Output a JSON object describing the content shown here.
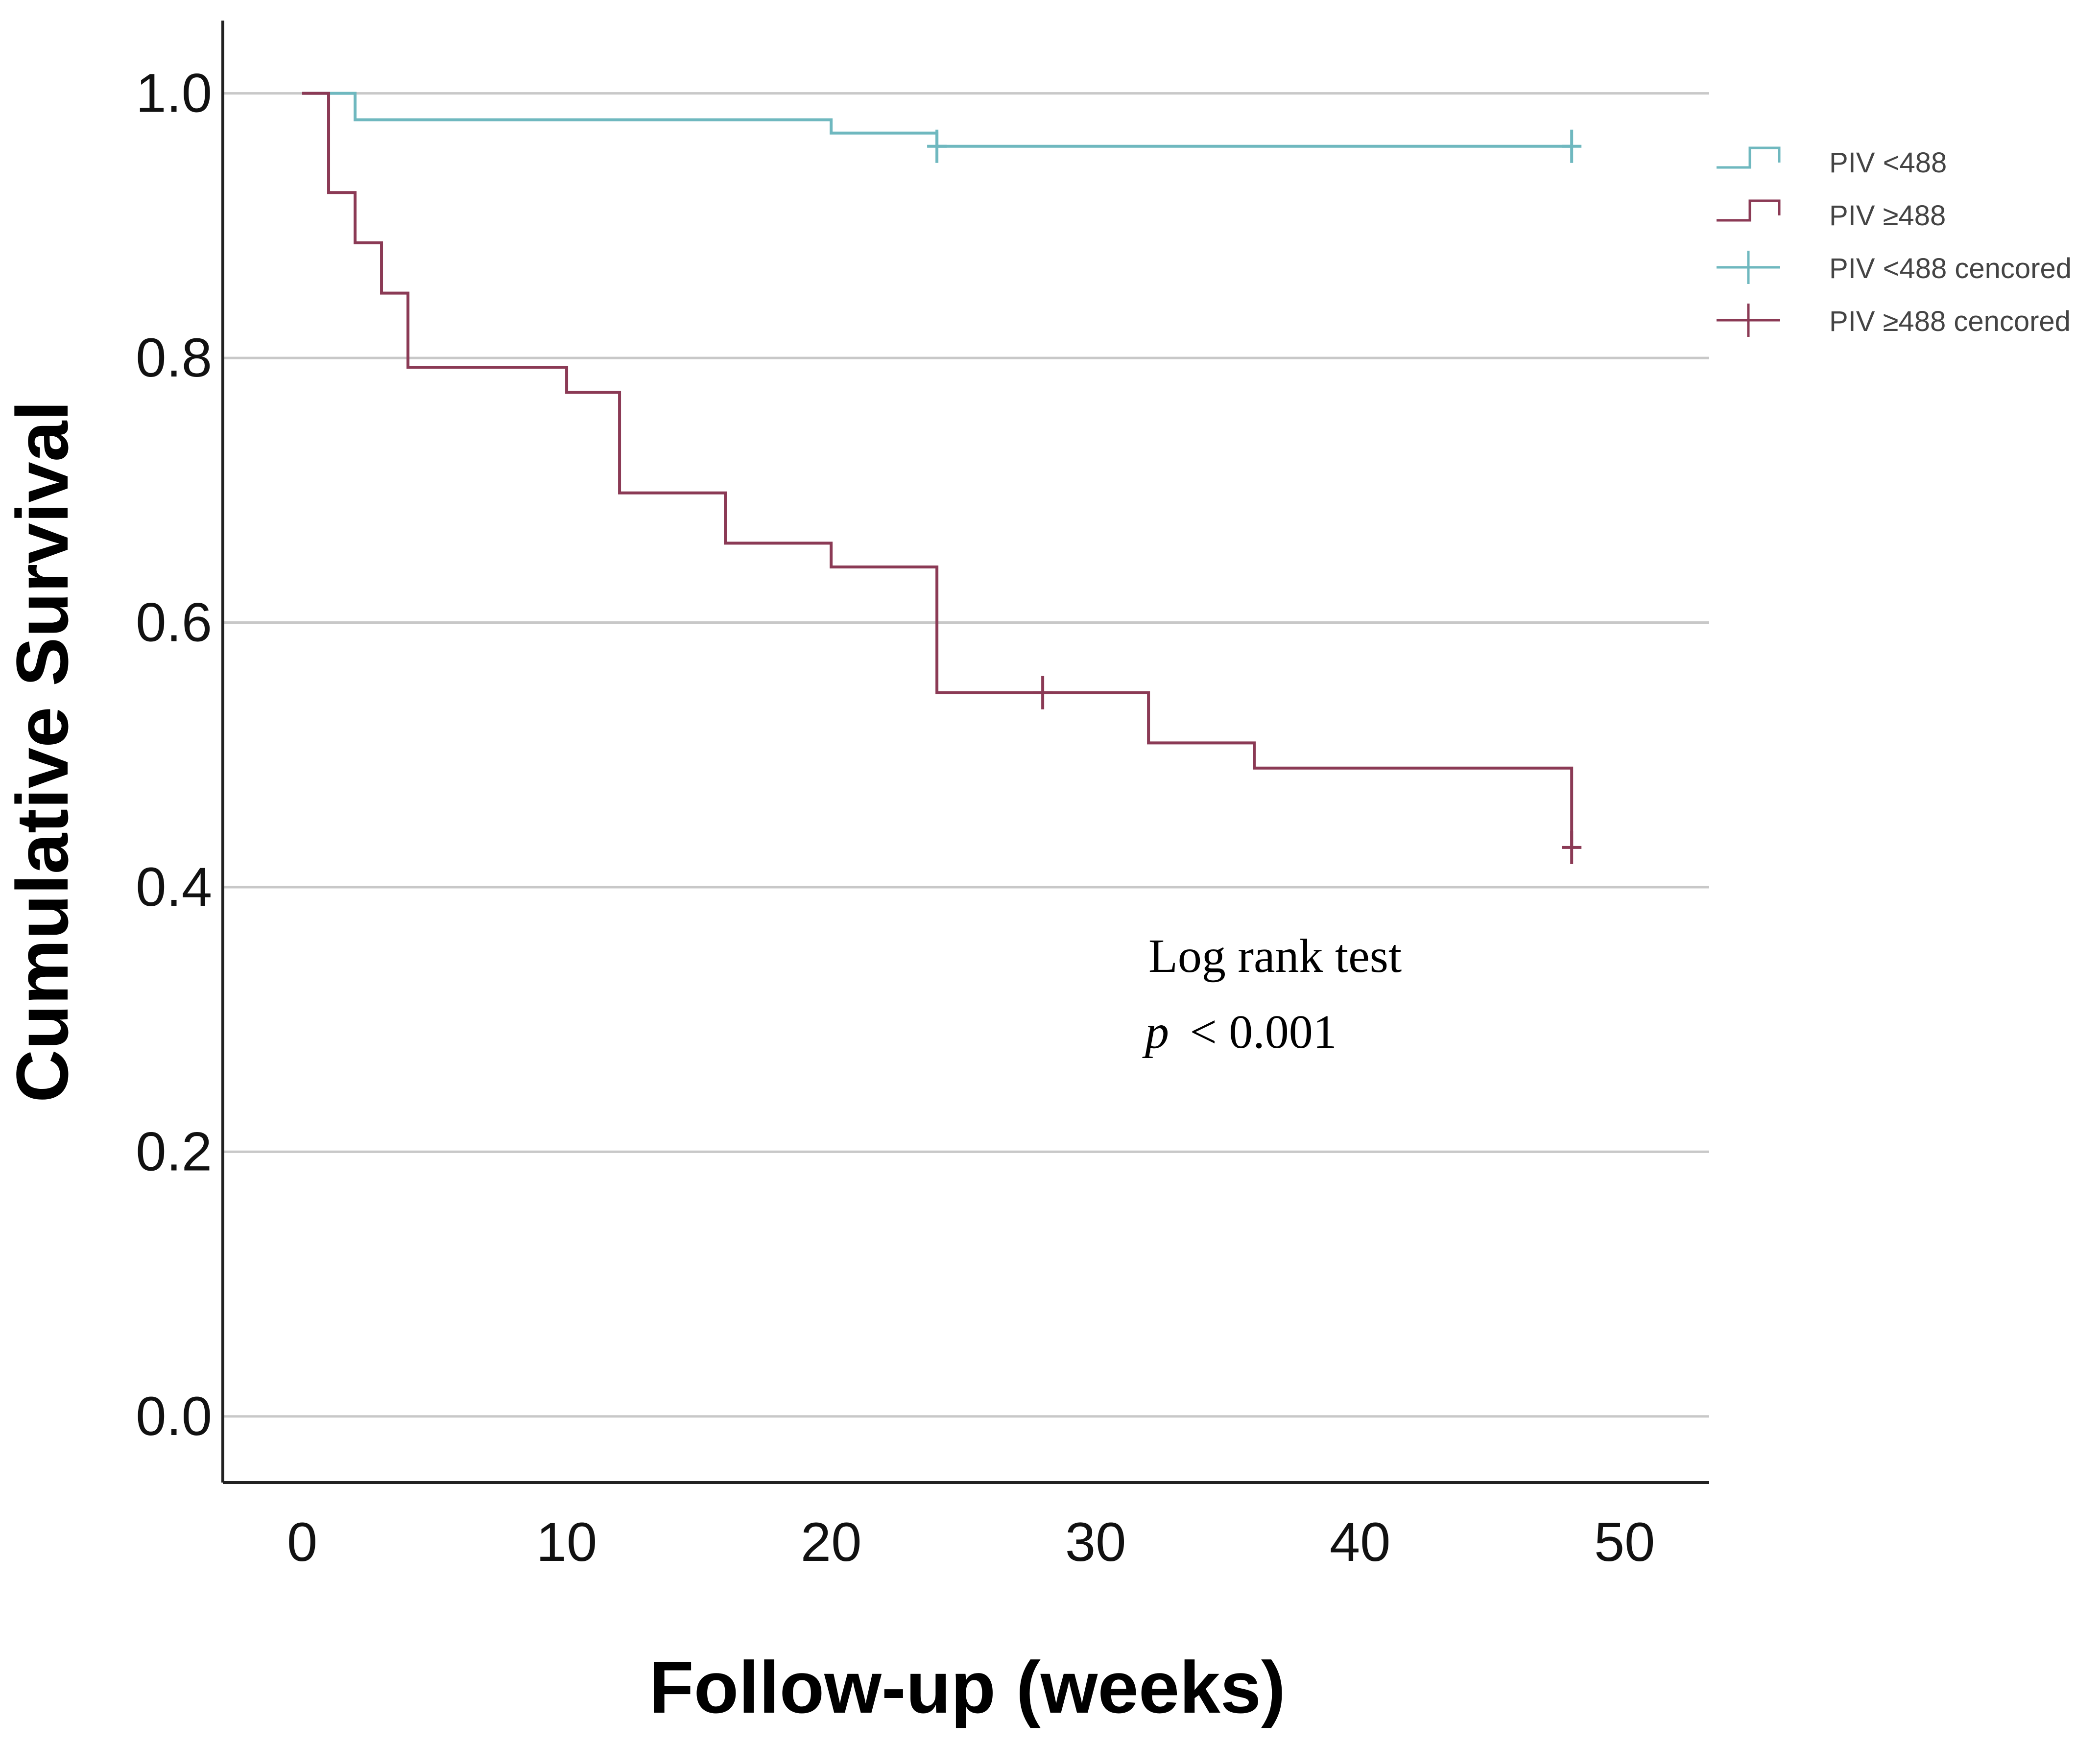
{
  "chart_data": {
    "type": "line",
    "title": "",
    "xlabel": "Follow-up (weeks)",
    "ylabel": "Cumulative Survival",
    "xlim": [
      -3,
      53.2
    ],
    "ylim": [
      -0.05,
      1.055
    ],
    "xticks": [
      0,
      10,
      20,
      30,
      40,
      50
    ],
    "xtick_labels": [
      "0",
      "10",
      "20",
      "30",
      "40",
      "50"
    ],
    "yticks": [
      0.0,
      0.2,
      0.4,
      0.6,
      0.8,
      1.0
    ],
    "ytick_labels": [
      "0.0",
      "0.2",
      "0.4",
      "0.6",
      "0.8",
      "1.0"
    ],
    "grid": "horizontal",
    "legend_position": "top-right",
    "series": [
      {
        "name": "PIV <488",
        "color": "#6fb8bf",
        "step_x": [
          0,
          2,
          20,
          24,
          48
        ],
        "step_y": [
          1.0,
          0.98,
          0.97,
          0.96,
          0.96
        ],
        "censored_name": "PIV <488 cencored",
        "censored_x": [
          24,
          48
        ],
        "censored_y": [
          0.96,
          0.96
        ]
      },
      {
        "name": "PIV ≥488",
        "color": "#8b3a55",
        "step_x": [
          0,
          1,
          2,
          3,
          4,
          10,
          12,
          16,
          20,
          24,
          32,
          36,
          48
        ],
        "step_y": [
          1.0,
          0.925,
          0.887,
          0.849,
          0.793,
          0.774,
          0.698,
          0.66,
          0.642,
          0.547,
          0.509,
          0.49,
          0.43
        ],
        "censored_name": "PIV ≥488 cencored",
        "censored_x": [
          28,
          48
        ],
        "censored_y": [
          0.547,
          0.43
        ]
      }
    ],
    "annotations": {
      "test_name": "Log rank test",
      "p_symbol": "p",
      "p_value": "< 0.001"
    }
  }
}
